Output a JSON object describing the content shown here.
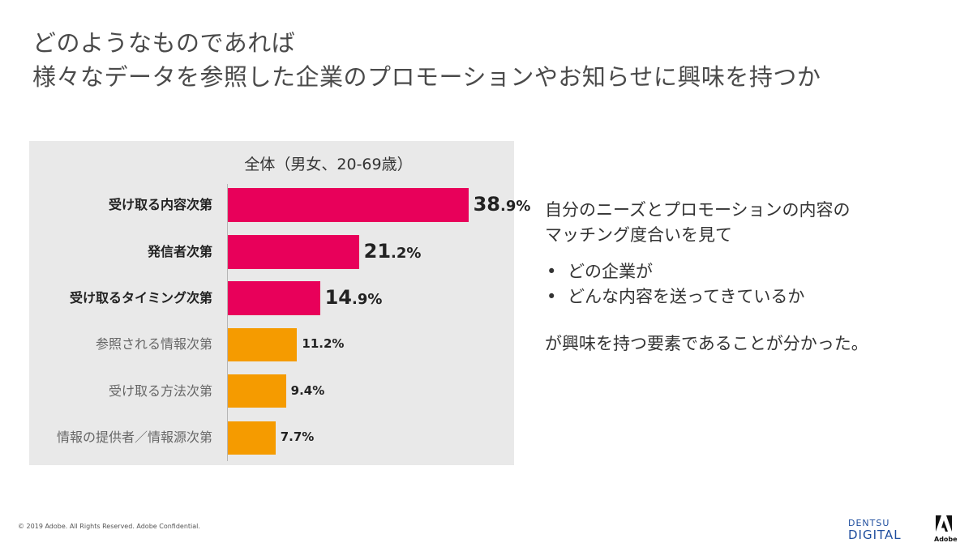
{
  "page": {
    "title_line1": "どのようなものであれば",
    "title_line2": "様々なデータを参照した企業のプロモーションやお知らせに興味を持つか"
  },
  "chart_data": {
    "type": "bar",
    "orientation": "horizontal",
    "title": "全体（男女、20-69歳）",
    "categories": [
      "受け取る内容次第",
      "発信者次第",
      "受け取るタイミング次第",
      "参照される情報次第",
      "受け取る方法次第",
      "情報の提供者／情報源次第"
    ],
    "values": [
      38.9,
      21.2,
      14.9,
      11.2,
      9.4,
      7.7
    ],
    "value_labels": [
      "38.9%",
      "21.2%",
      "14.9%",
      "11.2%",
      "9.4%",
      "7.7%"
    ],
    "colors": [
      "#e8005a",
      "#e8005a",
      "#e8005a",
      "#f59b00",
      "#f59b00",
      "#f59b00"
    ],
    "highlight": [
      true,
      true,
      true,
      false,
      false,
      false
    ],
    "xlim": [
      0,
      40
    ],
    "grid": false,
    "legend": "none"
  },
  "side": {
    "line1": "自分のニーズとプロモーションの内容の",
    "line2": "マッチング度合いを見て",
    "bullets": [
      "どの企業が",
      "どんな内容を送ってきているか"
    ],
    "bullet_char": "•",
    "conclusion": "が興味を持つ要素であることが分かった。"
  },
  "footer": {
    "copyright": "© 2019 Adobe. All Rights Reserved.  Adobe Confidential."
  },
  "logos": {
    "dentsu_line1": "DENTSU",
    "dentsu_line2": "DIGITAL",
    "adobe_mark": "A",
    "adobe_word": "Adobe"
  }
}
